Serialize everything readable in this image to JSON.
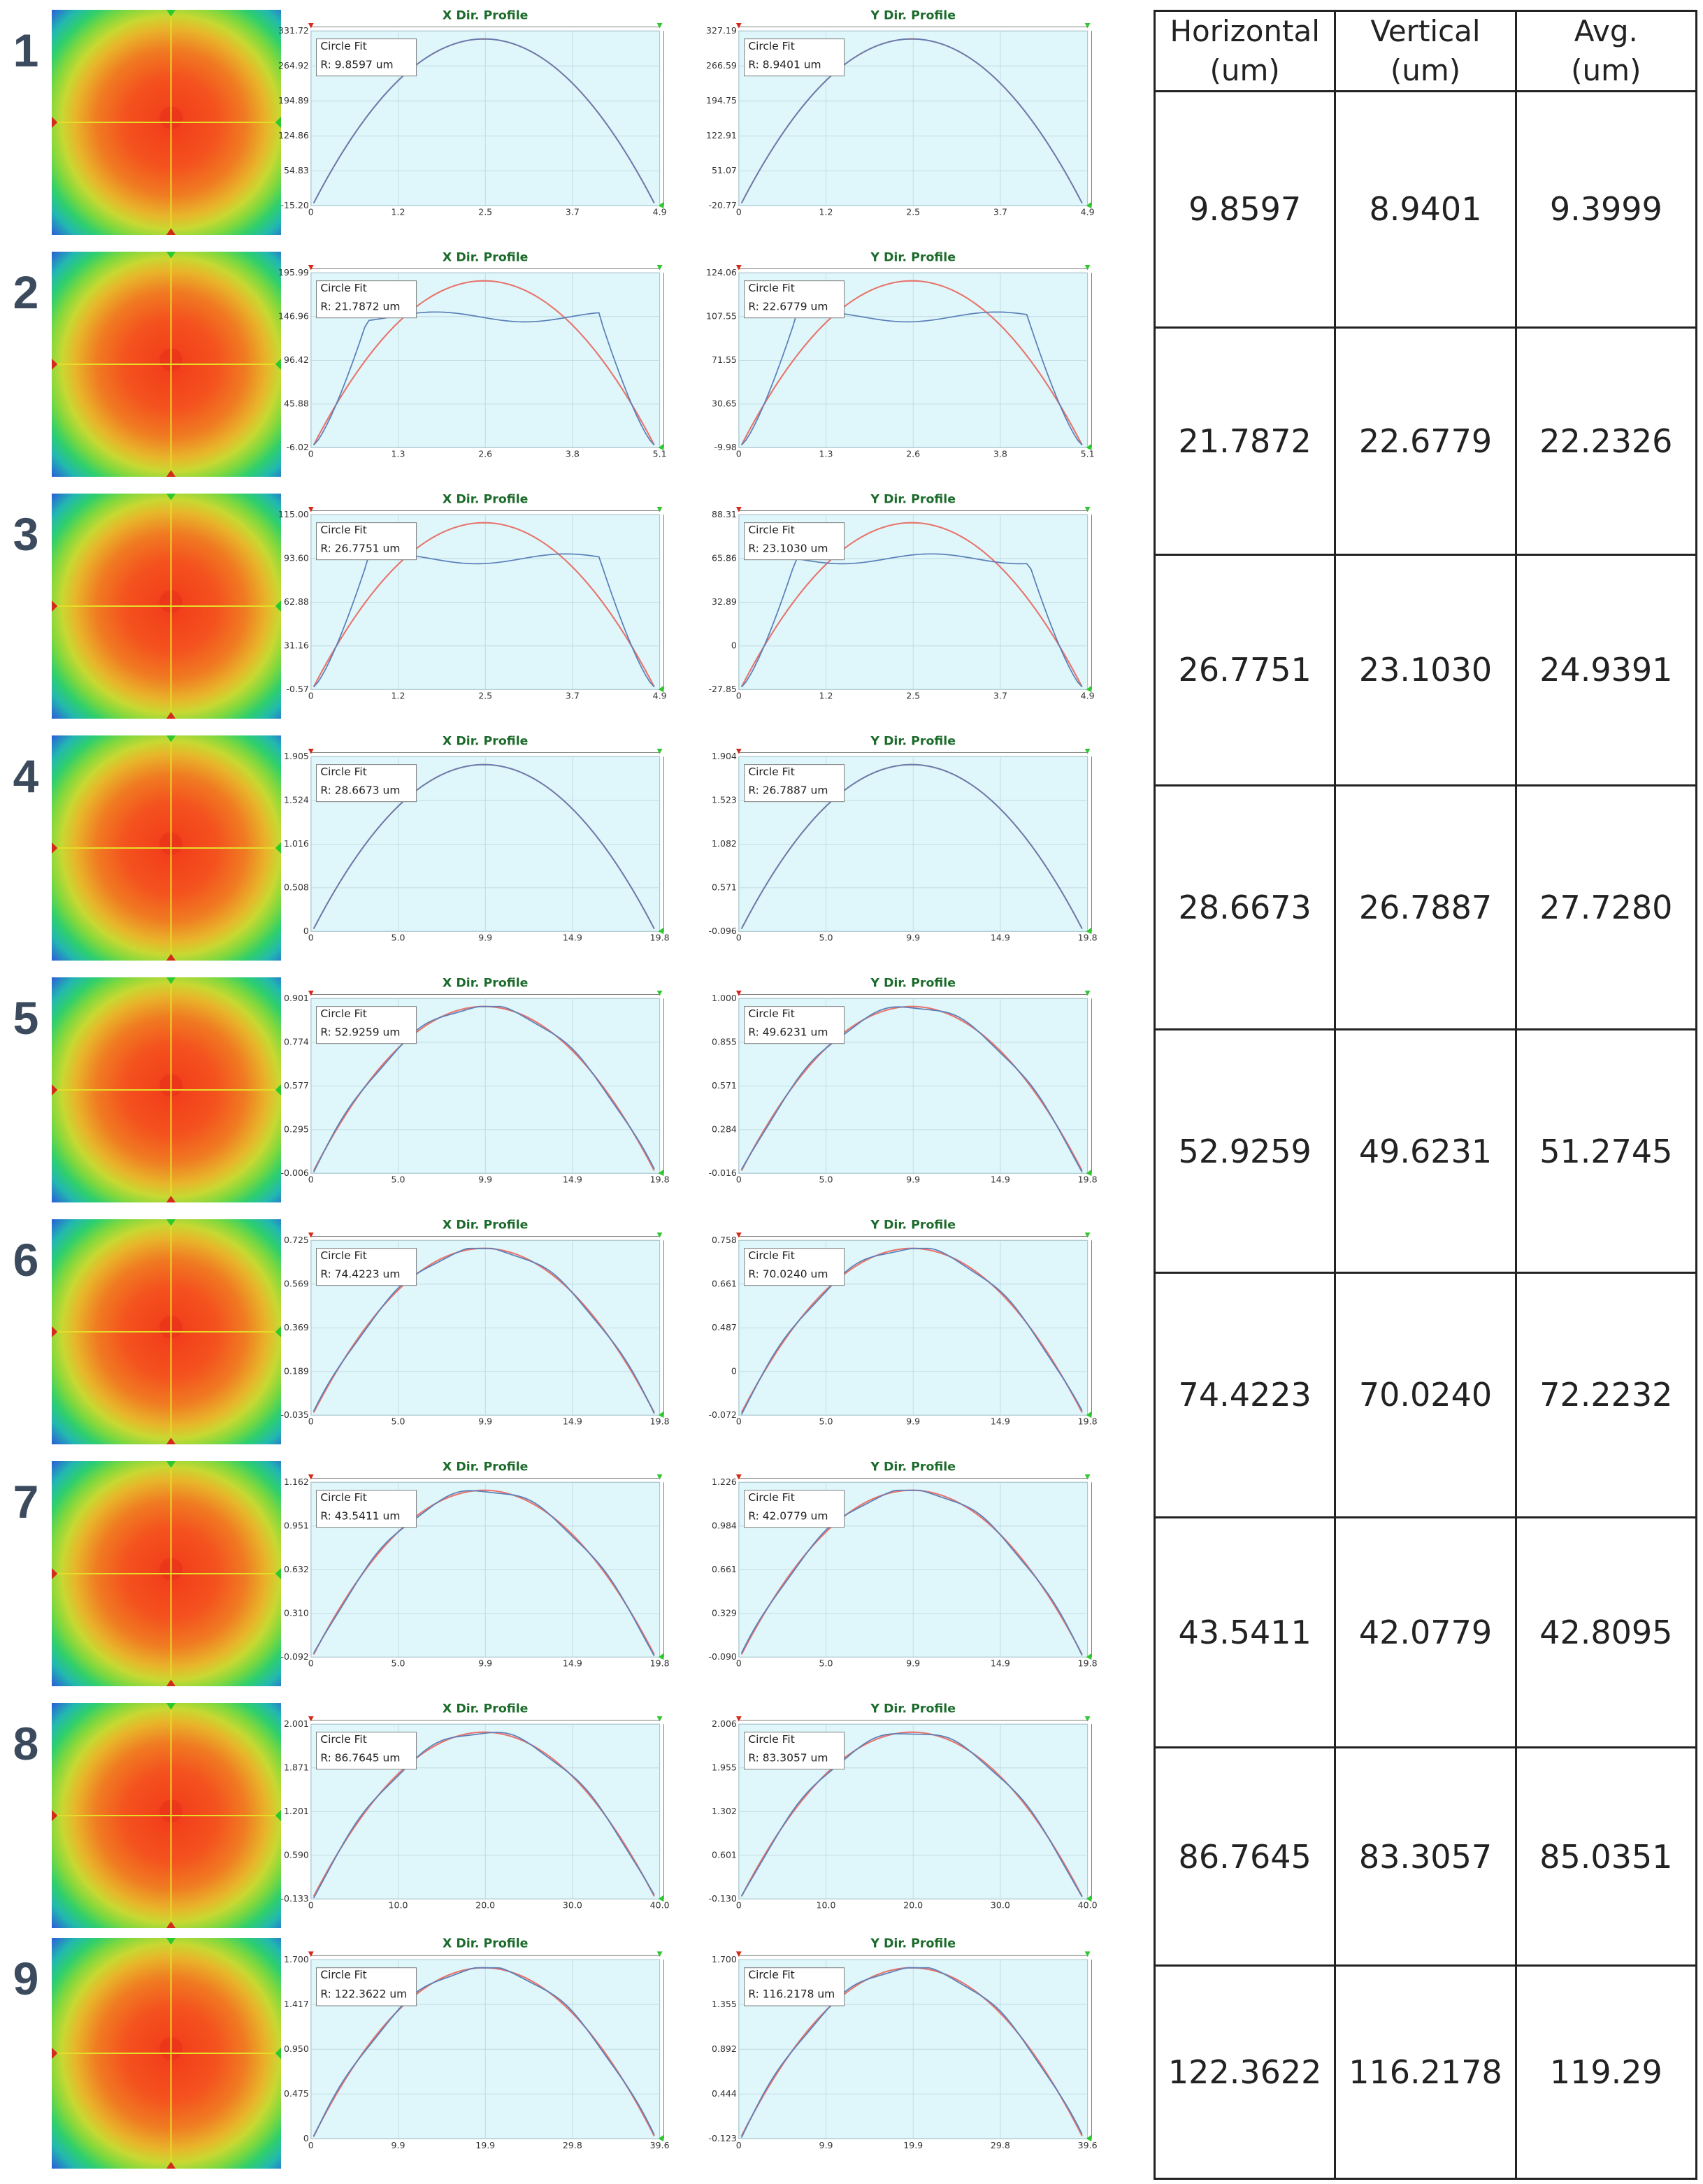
{
  "figure": {
    "rows": [
      {
        "label": "1",
        "x_profile": {
          "title": "X Dir. Profile",
          "fit_title": "Circle Fit",
          "fit_radius": "R: 9.8597 um",
          "x_ticks": [
            "0",
            "1.2",
            "2.5",
            "3.7",
            "4.9"
          ],
          "y_ticks": [
            "-15.20",
            "54.83",
            "124.86",
            "194.89",
            "264.92",
            "331.72"
          ],
          "shape": "arc"
        },
        "y_profile": {
          "title": "Y Dir. Profile",
          "fit_title": "Circle Fit",
          "fit_radius": "R: 8.9401 um",
          "x_ticks": [
            "0",
            "1.2",
            "2.5",
            "3.7",
            "4.9"
          ],
          "y_ticks": [
            "-20.77",
            "51.07",
            "122.91",
            "194.75",
            "266.59",
            "327.19"
          ],
          "shape": "arc"
        }
      },
      {
        "label": "2",
        "x_profile": {
          "title": "X Dir. Profile",
          "fit_title": "Circle Fit",
          "fit_radius": "R: 21.7872 um",
          "x_ticks": [
            "0",
            "1.3",
            "2.6",
            "3.8",
            "5.1"
          ],
          "y_ticks": [
            "-6.02",
            "45.88",
            "96.42",
            "146.96",
            "195.99"
          ],
          "shape": "flat"
        },
        "y_profile": {
          "title": "Y Dir. Profile",
          "fit_title": "Circle Fit",
          "fit_radius": "R: 22.6779 um",
          "x_ticks": [
            "0",
            "1.3",
            "2.6",
            "3.8",
            "5.1"
          ],
          "y_ticks": [
            "-9.98",
            "30.65",
            "71.55",
            "107.55",
            "124.06"
          ],
          "shape": "flat"
        }
      },
      {
        "label": "3",
        "x_profile": {
          "title": "X Dir. Profile",
          "fit_title": "Circle Fit",
          "fit_radius": "R: 26.7751 um",
          "x_ticks": [
            "0",
            "1.2",
            "2.5",
            "3.7",
            "4.9"
          ],
          "y_ticks": [
            "-0.57",
            "31.16",
            "62.88",
            "93.60",
            "115.00"
          ],
          "shape": "flat"
        },
        "y_profile": {
          "title": "Y Dir. Profile",
          "fit_title": "Circle Fit",
          "fit_radius": "R: 23.1030 um",
          "x_ticks": [
            "0",
            "1.2",
            "2.5",
            "3.7",
            "4.9"
          ],
          "y_ticks": [
            "-27.85",
            "0",
            "32.89",
            "65.86",
            "88.31"
          ],
          "shape": "flat"
        }
      },
      {
        "label": "4",
        "x_profile": {
          "title": "X Dir. Profile",
          "fit_title": "Circle Fit",
          "fit_radius": "R: 28.6673 um",
          "x_ticks": [
            "0",
            "5.0",
            "9.9",
            "14.9",
            "19.8"
          ],
          "y_ticks": [
            "0",
            "0.508",
            "1.016",
            "1.524",
            "1.905"
          ],
          "shape": "arc"
        },
        "y_profile": {
          "title": "Y Dir. Profile",
          "fit_title": "Circle Fit",
          "fit_radius": "R: 26.7887 um",
          "x_ticks": [
            "0",
            "5.0",
            "9.9",
            "14.9",
            "19.8"
          ],
          "y_ticks": [
            "-0.096",
            "0.571",
            "1.082",
            "1.523",
            "1.904"
          ],
          "shape": "arc"
        }
      },
      {
        "label": "5",
        "x_profile": {
          "title": "X Dir. Profile",
          "fit_title": "Circle Fit",
          "fit_radius": "R: 52.9259 um",
          "x_ticks": [
            "0",
            "5.0",
            "9.9",
            "14.9",
            "19.8"
          ],
          "y_ticks": [
            "-0.006",
            "0.295",
            "0.577",
            "0.774",
            "0.901"
          ],
          "shape": "bumpy"
        },
        "y_profile": {
          "title": "Y Dir. Profile",
          "fit_title": "Circle Fit",
          "fit_radius": "R: 49.6231 um",
          "x_ticks": [
            "0",
            "5.0",
            "9.9",
            "14.9",
            "19.8"
          ],
          "y_ticks": [
            "-0.016",
            "0.284",
            "0.571",
            "0.855",
            "1.000"
          ],
          "shape": "bumpy"
        }
      },
      {
        "label": "6",
        "x_profile": {
          "title": "X Dir. Profile",
          "fit_title": "Circle Fit",
          "fit_radius": "R: 74.4223 um",
          "x_ticks": [
            "0",
            "5.0",
            "9.9",
            "14.9",
            "19.8"
          ],
          "y_ticks": [
            "-0.035",
            "0.189",
            "0.369",
            "0.569",
            "0.725"
          ],
          "shape": "bumpy"
        },
        "y_profile": {
          "title": "Y Dir. Profile",
          "fit_title": "Circle Fit",
          "fit_radius": "R: 70.0240 um",
          "x_ticks": [
            "0",
            "5.0",
            "9.9",
            "14.9",
            "19.8"
          ],
          "y_ticks": [
            "-0.072",
            "0",
            "0.487",
            "0.661",
            "0.758"
          ],
          "shape": "bumpy"
        }
      },
      {
        "label": "7",
        "x_profile": {
          "title": "X Dir. Profile",
          "fit_title": "Circle Fit",
          "fit_radius": "R: 43.5411 um",
          "x_ticks": [
            "0",
            "5.0",
            "9.9",
            "14.9",
            "19.8"
          ],
          "y_ticks": [
            "-0.092",
            "0.310",
            "0.632",
            "0.951",
            "1.162"
          ],
          "shape": "bumpy"
        },
        "y_profile": {
          "title": "Y Dir. Profile",
          "fit_title": "Circle Fit",
          "fit_radius": "R: 42.0779 um",
          "x_ticks": [
            "0",
            "5.0",
            "9.9",
            "14.9",
            "19.8"
          ],
          "y_ticks": [
            "-0.090",
            "0.329",
            "0.661",
            "0.984",
            "1.226"
          ],
          "shape": "bumpy"
        }
      },
      {
        "label": "8",
        "x_profile": {
          "title": "X Dir. Profile",
          "fit_title": "Circle Fit",
          "fit_radius": "R: 86.7645 um",
          "x_ticks": [
            "0",
            "10.0",
            "20.0",
            "30.0",
            "40.0"
          ],
          "y_ticks": [
            "-0.133",
            "0.590",
            "1.201",
            "1.871",
            "2.001"
          ],
          "shape": "bumpy"
        },
        "y_profile": {
          "title": "Y Dir. Profile",
          "fit_title": "Circle Fit",
          "fit_radius": "R: 83.3057 um",
          "x_ticks": [
            "0",
            "10.0",
            "20.0",
            "30.0",
            "40.0"
          ],
          "y_ticks": [
            "-0.130",
            "0.601",
            "1.302",
            "1.955",
            "2.006"
          ],
          "shape": "bumpy"
        }
      },
      {
        "label": "9",
        "x_profile": {
          "title": "X Dir. Profile",
          "fit_title": "Circle Fit",
          "fit_radius": "R: 122.3622 um",
          "x_ticks": [
            "0",
            "9.9",
            "19.9",
            "29.8",
            "39.6"
          ],
          "y_ticks": [
            "0",
            "0.475",
            "0.950",
            "1.417",
            "1.700"
          ],
          "shape": "bumpy"
        },
        "y_profile": {
          "title": "Y Dir. Profile",
          "fit_title": "Circle Fit",
          "fit_radius": "R: 116.2178 um",
          "x_ticks": [
            "0",
            "9.9",
            "19.9",
            "29.8",
            "39.6"
          ],
          "y_ticks": [
            "-0.123",
            "0.444",
            "0.892",
            "1.355",
            "1.700"
          ],
          "shape": "bumpy"
        }
      }
    ]
  },
  "table": {
    "headers": [
      {
        "line1": "Horizontal",
        "line2": "(um)"
      },
      {
        "line1": "Vertical",
        "line2": "(um)"
      },
      {
        "line1": "Avg.",
        "line2": "(um)"
      }
    ],
    "rows": [
      [
        "9.8597",
        "8.9401",
        "9.3999"
      ],
      [
        "21.7872",
        "22.6779",
        "22.2326"
      ],
      [
        "26.7751",
        "23.1030",
        "24.9391"
      ],
      [
        "28.6673",
        "26.7887",
        "27.7280"
      ],
      [
        "52.9259",
        "49.6231",
        "51.2745"
      ],
      [
        "74.4223",
        "70.0240",
        "72.2232"
      ],
      [
        "43.5411",
        "42.0779",
        "42.8095"
      ],
      [
        "86.7645",
        "83.3057",
        "85.0351"
      ],
      [
        "122.3622",
        "116.2178",
        "119.29"
      ]
    ]
  },
  "colors": {
    "plot_bg": "#dff7fb",
    "measured_line": "#5b7fb8",
    "fit_line": "#e8746c",
    "heatmap_center": "#f4411c",
    "heatmap_edge": "#2a6dd8",
    "crosshair": "#e6dd2a",
    "row_number": "#3b4a5c"
  }
}
